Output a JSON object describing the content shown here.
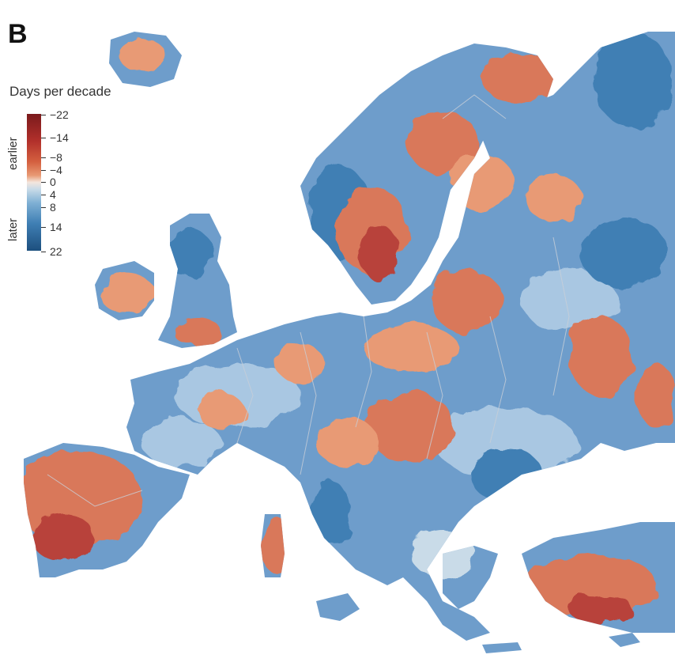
{
  "panel_label": "B",
  "legend": {
    "title": "Days per decade",
    "earlier_label": "earlier",
    "later_label": "later",
    "ticks": [
      "−22",
      "−14",
      "−8",
      "−4",
      "0",
      "4",
      "8",
      "14",
      "22"
    ],
    "colors": [
      "#7a1a1c",
      "#b2302b",
      "#d4603f",
      "#e89a74",
      "#f4d9c8",
      "#c9dbe8",
      "#7fb0d4",
      "#3f7fb4",
      "#1d4f7e"
    ]
  },
  "map_colors": {
    "land_blue": "#6e9dcb",
    "land_blue_light": "#a9c7e2",
    "land_red": "#d9785a",
    "land_red_dark": "#b8433a",
    "borders": "#c9cfd8"
  }
}
